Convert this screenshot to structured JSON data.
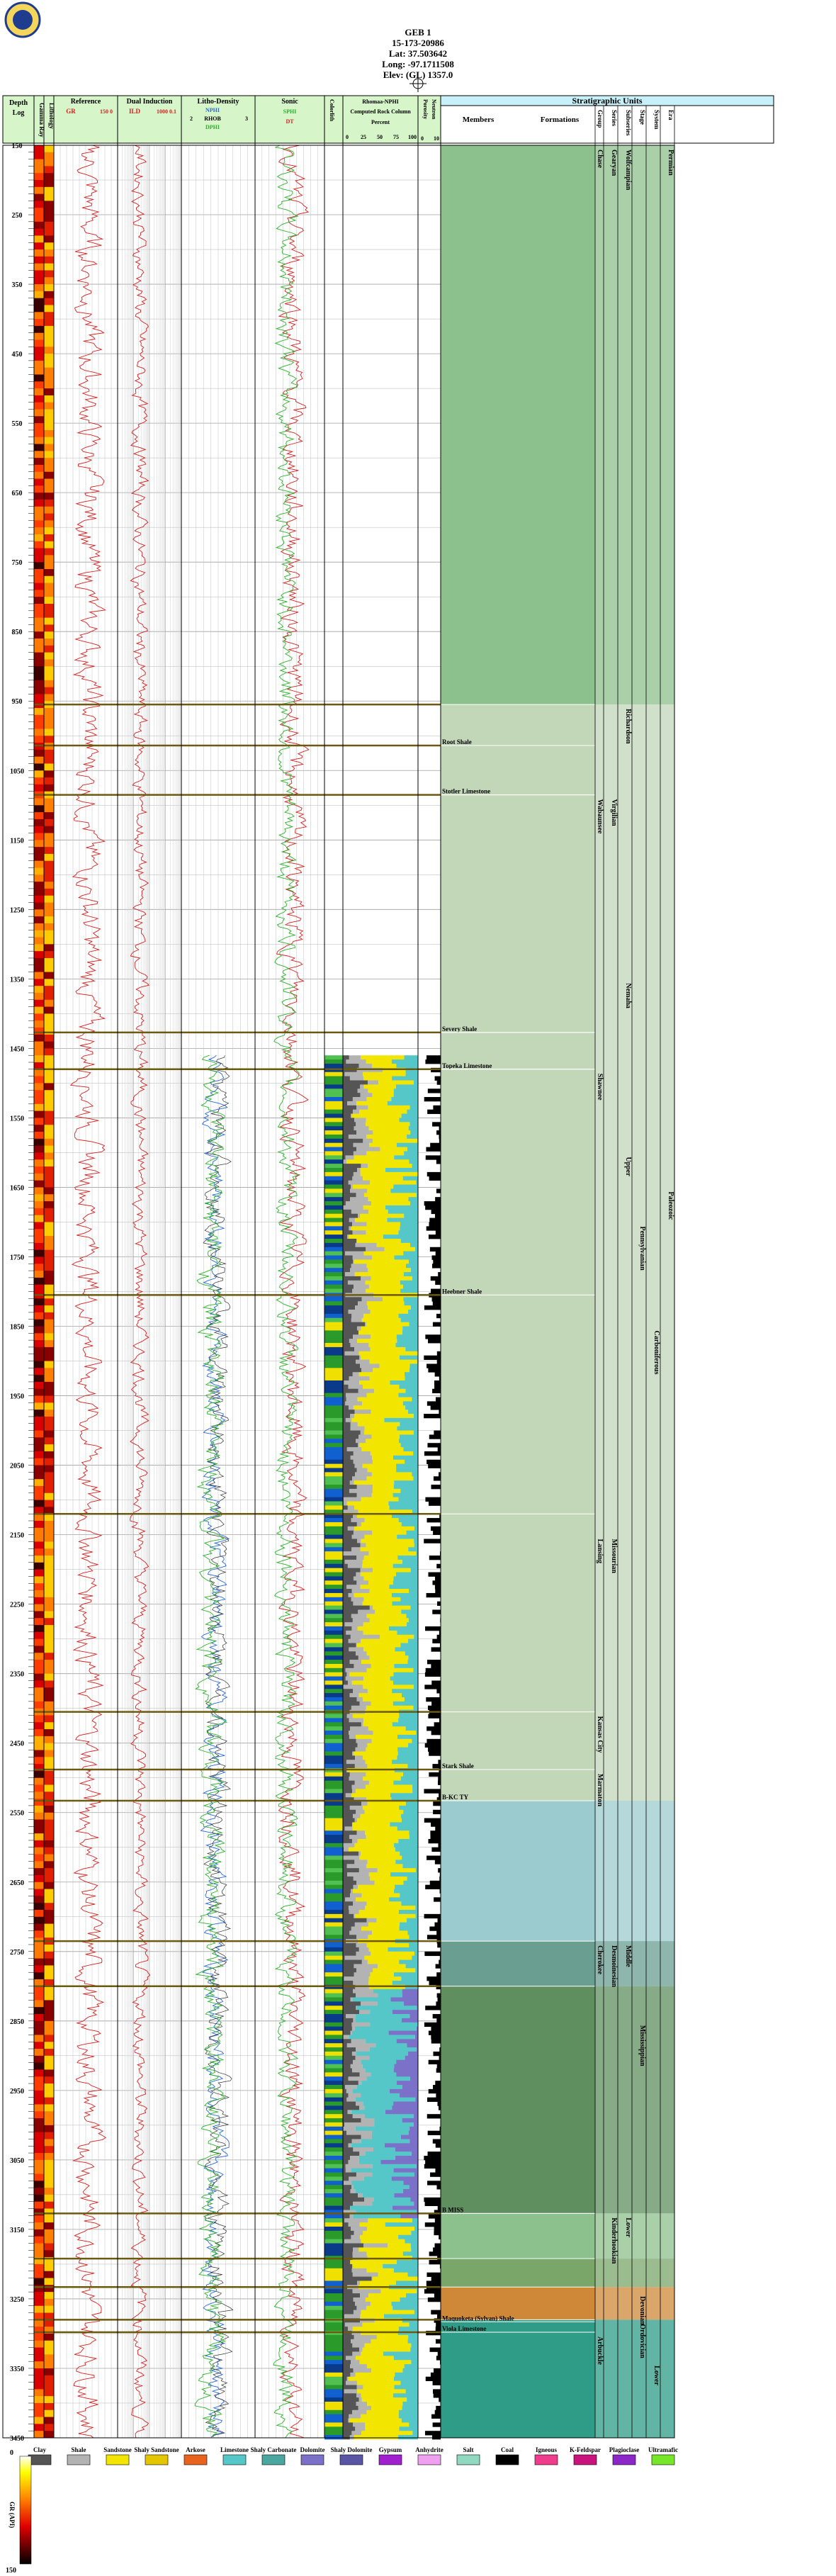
{
  "header": {
    "title": "GEB 1",
    "api": "15-173-20986",
    "lat": "Lat: 37.503642",
    "long": "Long: -97.1711508",
    "elev": "Elev: (GL) 1357.0",
    "logo_alt": "Kansas Geological Survey seal",
    "well_symbol": "dry-hole-symbol"
  },
  "columns": {
    "depth": "Depth",
    "log": "Log",
    "gamma_ray": "Gamma Ray",
    "lithology": "Lithology",
    "reference": "Reference",
    "reference_curve": "GR",
    "reference_min": "150",
    "reference_max": "0",
    "dual_induction": "Dual Induction",
    "ild": "ILD",
    "ild_min": "1000",
    "ild_max": "0.1",
    "litho_density": "Litho-Density",
    "nphi": "NPHI",
    "nphi_scale": "0.3  -0.1",
    "rhob": "RHOB",
    "rhob_scale": "2  3",
    "dphi": "DPHI",
    "dphi_scale": "0.3  -0.1",
    "sonic": "Sonic",
    "sphi": "SPHI",
    "sphi_scale": "0.3  -0.1",
    "dt": "DT",
    "dt_scale": "140  40",
    "colorlith": "Colorlith",
    "rhomaa_umaa": "Rhomaa-Umaa",
    "rhomaa_nphi": "Rhomaa-NPHI",
    "computed_rock": "Computed Rock Column",
    "percent": "Percent",
    "percent_ticks": [
      "0",
      "25",
      "50",
      "75",
      "100"
    ],
    "porosity": "Porosity",
    "porosity_ticks": [
      "0",
      "10"
    ],
    "neutron": "Neutron",
    "strat_units": "Stratigraphic Units",
    "members": "Members",
    "formations": "Formations",
    "strat_columns": [
      "Group",
      "Series",
      "Subseries",
      "Stage",
      "System",
      "Era"
    ]
  },
  "chart_data": {
    "type": "well_log",
    "depth_unit": "ft",
    "depth_range": [
      150,
      3450
    ],
    "depth_ticks": [
      150,
      250,
      350,
      450,
      550,
      650,
      750,
      850,
      950,
      1050,
      1150,
      1250,
      1350,
      1450,
      1550,
      1650,
      1750,
      1850,
      1950,
      2050,
      2150,
      2250,
      2350,
      2450,
      2550,
      2650,
      2750,
      2850,
      2950,
      3050,
      3150,
      3250,
      3350,
      3450
    ],
    "tops": [
      {
        "depth": 1014,
        "member": "Root Shale"
      },
      {
        "depth": 1085,
        "member": "Stotler Limestone"
      },
      {
        "depth": 1427,
        "member": "Severy Shale"
      },
      {
        "depth": 1480,
        "member": "Topeka Limestone"
      },
      {
        "depth": 1805,
        "member": "Heebner Shale"
      },
      {
        "depth": 2488,
        "member": "Stark Shale"
      },
      {
        "depth": 2533,
        "member": "B-KC TY"
      },
      {
        "depth": 3127,
        "member": "B MISS"
      },
      {
        "depth": 3283,
        "member": "Maquoketa (Sylvan) Shale"
      },
      {
        "depth": 3298,
        "member": "Viola Limestone"
      }
    ],
    "formation_lines": [
      955,
      1014,
      1085,
      1427,
      1480,
      1805,
      2120,
      2405,
      2488,
      2533,
      2735,
      2800,
      3127,
      3192,
      3233,
      3280,
      3298
    ],
    "strat_labels": [
      {
        "col": "Group",
        "text": "Chase",
        "from": 150,
        "to": 350
      },
      {
        "col": "Group",
        "text": "Wabaunsee",
        "from": 1085,
        "to": 1320
      },
      {
        "col": "Group",
        "text": "Shawnee",
        "from": 1480,
        "to": 1805
      },
      {
        "col": "Group",
        "text": "Lansing",
        "from": 2150,
        "to": 2320
      },
      {
        "col": "Group",
        "text": "Kansas City",
        "from": 2405,
        "to": 2488
      },
      {
        "col": "Group",
        "text": "Marmaton",
        "from": 2488,
        "to": 2533
      },
      {
        "col": "Group",
        "text": "Cherokee",
        "from": 2735,
        "to": 2800
      },
      {
        "col": "Group",
        "text": "Arbuckle",
        "from": 3298,
        "to": 3450
      },
      {
        "col": "Series",
        "text": "Gearyan",
        "from": 150,
        "to": 350
      },
      {
        "col": "Series",
        "text": "Virgilian",
        "from": 1085,
        "to": 1450
      },
      {
        "col": "Series",
        "text": "Missourian",
        "from": 2150,
        "to": 2405
      },
      {
        "col": "Series",
        "text": "Desmoinesian",
        "from": 2735,
        "to": 2800
      },
      {
        "col": "Series",
        "text": "Kinderhookian",
        "from": 3127,
        "to": 3240
      },
      {
        "col": "Subseries",
        "text": "Wolfcampian",
        "from": 150,
        "to": 350
      },
      {
        "col": "Subseries",
        "text": "Richardson",
        "from": 955,
        "to": 1085
      },
      {
        "col": "Subseries",
        "text": "Nemaha",
        "from": 1350,
        "to": 1480
      },
      {
        "col": "Subseries",
        "text": "Upper",
        "from": 1600,
        "to": 1805
      },
      {
        "col": "Subseries",
        "text": "Middle",
        "from": 2735,
        "to": 2800
      },
      {
        "col": "Subseries",
        "text": "Lower",
        "from": 3127,
        "to": 3160
      },
      {
        "col": "Stage",
        "text": "Pennsylvanian",
        "from": 1700,
        "to": 1850
      },
      {
        "col": "Stage",
        "text": "Mississippian",
        "from": 2850,
        "to": 3127
      },
      {
        "col": "Stage",
        "text": "Devonian",
        "from": 3240,
        "to": 3280
      },
      {
        "col": "Stage",
        "text": "Ordovician",
        "from": 3280,
        "to": 3350
      },
      {
        "col": "System",
        "text": "Carboniferous",
        "from": 1850,
        "to": 2100
      },
      {
        "col": "System",
        "text": "Lower",
        "from": 3340,
        "to": 3380
      },
      {
        "col": "Era",
        "text": "Permian",
        "from": 150,
        "to": 300
      },
      {
        "col": "Era",
        "text": "Paleozoic",
        "from": 1650,
        "to": 1900
      }
    ],
    "strat_bands": [
      {
        "from": 150,
        "to": 955,
        "color": "#8cc08c"
      },
      {
        "from": 955,
        "to": 2533,
        "color": "#c2d6b8"
      },
      {
        "from": 2533,
        "to": 2735,
        "color": "#9ccbcf"
      },
      {
        "from": 2735,
        "to": 2800,
        "color": "#6a9e90"
      },
      {
        "from": 2800,
        "to": 3127,
        "color": "#5f8e5f"
      },
      {
        "from": 3127,
        "to": 3192,
        "color": "#8cc08c"
      },
      {
        "from": 3192,
        "to": 3233,
        "color": "#7aa66a"
      },
      {
        "from": 3233,
        "to": 3280,
        "color": "#cf8838"
      },
      {
        "from": 3280,
        "to": 3450,
        "color": "#2e9c86"
      }
    ],
    "log_data_start": 1460,
    "legend": [
      {
        "label": "Clay",
        "color": "#555555"
      },
      {
        "label": "Shale",
        "color": "#b3b3b3"
      },
      {
        "label": "Sandstone",
        "color": "#f2e600"
      },
      {
        "label": "Shaly Sandstone",
        "color": "#e3c600"
      },
      {
        "label": "Arkose",
        "color": "#e8641e"
      },
      {
        "label": "Limestone",
        "color": "#56c7c9"
      },
      {
        "label": "Shaly Carbonate",
        "color": "#4aa7a0"
      },
      {
        "label": "Dolomite",
        "color": "#7b71c9"
      },
      {
        "label": "Shaly Dolomite",
        "color": "#5b55a6"
      },
      {
        "label": "Gypsum",
        "color": "#a020d0"
      },
      {
        "label": "Anhydrite",
        "color": "#f0a0f0"
      },
      {
        "label": "Salt",
        "color": "#90d8c0"
      },
      {
        "label": "Coal",
        "color": "#000000"
      },
      {
        "label": "Igneous",
        "color": "#f03c8c"
      },
      {
        "label": "K-Feldspar",
        "color": "#c8147c"
      },
      {
        "label": "Plagioclase",
        "color": "#8c28c8"
      },
      {
        "label": "Ultramafic",
        "color": "#78e628"
      }
    ],
    "gr_scale": {
      "label": "GR (API)",
      "min": "0",
      "max": "150"
    }
  },
  "colors": {
    "header_fill": "#d6f5c8",
    "strat_header": "#c8f0f8",
    "gr_curve": "#d42020",
    "ild_curve": "#d42020",
    "nphi_curve": "#2a6ad4",
    "rhob_curve": "#303030",
    "dphi_curve": "#2ab02a",
    "sphi_curve": "#2ab02a",
    "dt_curve": "#d42020",
    "formation_line": "#6b5a10"
  }
}
